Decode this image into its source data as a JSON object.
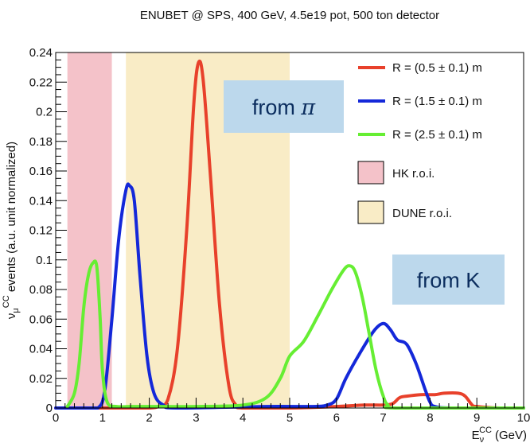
{
  "chart_data": {
    "type": "area",
    "title": "ENUBET @ SPS, 400 GeV, 4.5e19 pot, 500 ton detector",
    "xlabel": {
      "main": "E",
      "sub": "ν",
      "sup": "CC",
      "unit": "(GeV)"
    },
    "ylabel": {
      "main": "ν",
      "sub": "μ",
      "sup": "CC",
      "rest": " events (a.u. unit normalized)"
    },
    "xlim": [
      0,
      10
    ],
    "ylim": [
      0,
      0.24
    ],
    "xticks": [
      "0",
      "1",
      "2",
      "3",
      "4",
      "5",
      "6",
      "7",
      "8",
      "9",
      "10"
    ],
    "yticks": [
      "0",
      "0.02",
      "0.04",
      "0.06",
      "0.08",
      "0.1",
      "0.12",
      "0.14",
      "0.16",
      "0.18",
      "0.2",
      "0.22",
      "0.24"
    ],
    "regions": [
      {
        "name": "HK r.o.i.",
        "x": [
          0.25,
          1.2
        ],
        "color": "#f4c2c9"
      },
      {
        "name": "DUNE r.o.i.",
        "x": [
          1.5,
          5.0
        ],
        "color": "#f9ecc6"
      }
    ],
    "series": [
      {
        "name": "R = (0.5 ± 0.1) m",
        "color": "#e8412b",
        "points": [
          [
            0,
            0
          ],
          [
            0.3,
            0
          ],
          [
            0.7,
            0
          ],
          [
            1.1,
            0
          ],
          [
            1.4,
            0
          ],
          [
            1.6,
            0
          ],
          [
            1.8,
            0
          ],
          [
            2.0,
            0
          ],
          [
            2.2,
            0.001
          ],
          [
            2.4,
            0.006
          ],
          [
            2.6,
            0.04
          ],
          [
            2.8,
            0.12
          ],
          [
            2.95,
            0.205
          ],
          [
            3.05,
            0.233
          ],
          [
            3.15,
            0.222
          ],
          [
            3.3,
            0.16
          ],
          [
            3.5,
            0.07
          ],
          [
            3.7,
            0.015
          ],
          [
            3.85,
            0.002
          ],
          [
            4.0,
            0
          ],
          [
            5.0,
            0
          ],
          [
            6.0,
            0.001
          ],
          [
            6.6,
            0.002
          ],
          [
            7.0,
            0.002
          ],
          [
            7.2,
            0.003
          ],
          [
            7.35,
            0.007
          ],
          [
            7.5,
            0.008
          ],
          [
            7.8,
            0.009
          ],
          [
            8.1,
            0.009
          ],
          [
            8.3,
            0.01
          ],
          [
            8.6,
            0.01
          ],
          [
            8.75,
            0.008
          ],
          [
            8.9,
            0.002
          ],
          [
            9.0,
            0.001
          ],
          [
            9.5,
            0
          ],
          [
            10,
            0
          ]
        ]
      },
      {
        "name": "R = (1.5 ± 0.1) m",
        "color": "#1428d9",
        "points": [
          [
            0,
            0
          ],
          [
            0.6,
            0
          ],
          [
            0.9,
            0
          ],
          [
            1.05,
            0.012
          ],
          [
            1.2,
            0.06
          ],
          [
            1.35,
            0.115
          ],
          [
            1.5,
            0.147
          ],
          [
            1.58,
            0.15
          ],
          [
            1.68,
            0.14
          ],
          [
            1.8,
            0.09
          ],
          [
            1.95,
            0.035
          ],
          [
            2.1,
            0.01
          ],
          [
            2.3,
            0.002
          ],
          [
            2.6,
            0
          ],
          [
            4.5,
            0.001
          ],
          [
            5.5,
            0.001
          ],
          [
            5.8,
            0.002
          ],
          [
            6.0,
            0.006
          ],
          [
            6.2,
            0.02
          ],
          [
            6.5,
            0.037
          ],
          [
            6.8,
            0.052
          ],
          [
            7.0,
            0.057
          ],
          [
            7.15,
            0.053
          ],
          [
            7.3,
            0.046
          ],
          [
            7.5,
            0.043
          ],
          [
            7.7,
            0.03
          ],
          [
            7.9,
            0.012
          ],
          [
            8.0,
            0.004
          ],
          [
            8.1,
            0.001
          ],
          [
            8.5,
            0
          ],
          [
            10,
            0
          ]
        ]
      },
      {
        "name": "R = (2.5 ± 0.1) m",
        "color": "#66ee33",
        "points": [
          [
            0.25,
            0.001
          ],
          [
            0.4,
            0.01
          ],
          [
            0.5,
            0.03
          ],
          [
            0.6,
            0.068
          ],
          [
            0.7,
            0.09
          ],
          [
            0.8,
            0.098
          ],
          [
            0.88,
            0.095
          ],
          [
            0.95,
            0.06
          ],
          [
            1.0,
            0.025
          ],
          [
            1.1,
            0.004
          ],
          [
            1.3,
            0.001
          ],
          [
            1.6,
            0.001
          ],
          [
            2.0,
            0.001
          ],
          [
            3.0,
            0.001
          ],
          [
            4.0,
            0.002
          ],
          [
            4.5,
            0.007
          ],
          [
            4.8,
            0.02
          ],
          [
            5.0,
            0.035
          ],
          [
            5.3,
            0.045
          ],
          [
            5.6,
            0.062
          ],
          [
            5.9,
            0.08
          ],
          [
            6.15,
            0.093
          ],
          [
            6.28,
            0.096
          ],
          [
            6.4,
            0.092
          ],
          [
            6.55,
            0.075
          ],
          [
            6.7,
            0.05
          ],
          [
            6.85,
            0.025
          ],
          [
            7.0,
            0.008
          ],
          [
            7.1,
            0.002
          ],
          [
            7.3,
            0
          ],
          [
            10,
            0
          ]
        ]
      }
    ],
    "legend": {
      "placement": "top-right"
    },
    "annotations": [
      {
        "id": "pi",
        "text_main": "from ",
        "text_greek": "π",
        "color": "#bcd8ec"
      },
      {
        "id": "k",
        "text_main": "from K",
        "text_greek": "",
        "color": "#bcd8ec"
      }
    ],
    "grid": false
  }
}
